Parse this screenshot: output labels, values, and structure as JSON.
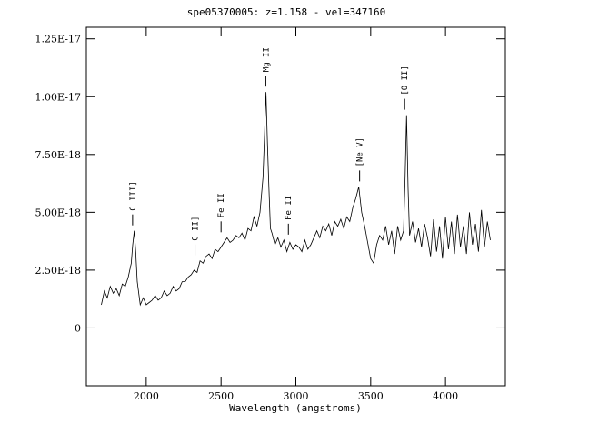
{
  "chart_data": {
    "type": "line",
    "title": "spe05370005: z=1.158 - vel=347160",
    "xlabel": "Wavelength (angstroms)",
    "ylabel": "",
    "xlim": [
      1600,
      4400
    ],
    "ylim": [
      -2.5e-18,
      1.3e-17
    ],
    "x_ticks": [
      2000,
      2500,
      3000,
      3500,
      4000
    ],
    "x_tick_labels": [
      "2000",
      "2500",
      "3000",
      "3500",
      "4000"
    ],
    "y_ticks": [
      0,
      2.5e-18,
      5e-18,
      7.5e-18,
      1e-17,
      1.25e-17
    ],
    "y_tick_labels": [
      "0",
      "2.50E-18",
      "5.00E-18",
      "7.50E-18",
      "1.00E-17",
      "1.25E-17"
    ],
    "grid": false,
    "series": [
      {
        "color": "#000000",
        "x": [
          1700,
          1720,
          1740,
          1760,
          1780,
          1800,
          1820,
          1840,
          1860,
          1880,
          1900,
          1910,
          1920,
          1930,
          1940,
          1960,
          1980,
          2000,
          2020,
          2040,
          2060,
          2080,
          2100,
          2120,
          2140,
          2160,
          2180,
          2200,
          2220,
          2240,
          2260,
          2280,
          2300,
          2320,
          2340,
          2360,
          2380,
          2400,
          2420,
          2440,
          2460,
          2480,
          2500,
          2520,
          2540,
          2560,
          2580,
          2600,
          2620,
          2640,
          2660,
          2680,
          2700,
          2720,
          2740,
          2760,
          2780,
          2790,
          2800,
          2810,
          2820,
          2830,
          2840,
          2860,
          2880,
          2900,
          2920,
          2940,
          2960,
          2980,
          3000,
          3020,
          3040,
          3060,
          3080,
          3100,
          3120,
          3140,
          3160,
          3180,
          3200,
          3220,
          3240,
          3260,
          3280,
          3300,
          3320,
          3340,
          3360,
          3380,
          3400,
          3420,
          3440,
          3460,
          3480,
          3500,
          3520,
          3540,
          3560,
          3580,
          3600,
          3620,
          3640,
          3660,
          3680,
          3700,
          3720,
          3730,
          3740,
          3750,
          3760,
          3780,
          3800,
          3820,
          3840,
          3860,
          3880,
          3900,
          3920,
          3940,
          3960,
          3980,
          4000,
          4020,
          4040,
          4060,
          4080,
          4100,
          4120,
          4140,
          4160,
          4180,
          4200,
          4220,
          4240,
          4260,
          4280,
          4300
        ],
        "y": [
          1e-18,
          1.6e-18,
          1.3e-18,
          1.8e-18,
          1.5e-18,
          1.7e-18,
          1.4e-18,
          1.9e-18,
          1.8e-18,
          2.2e-18,
          2.8e-18,
          3.6e-18,
          4.2e-18,
          3.3e-18,
          2e-18,
          1e-18,
          1.3e-18,
          1e-18,
          1.1e-18,
          1.2e-18,
          1.4e-18,
          1.2e-18,
          1.3e-18,
          1.6e-18,
          1.4e-18,
          1.5e-18,
          1.8e-18,
          1.6e-18,
          1.7e-18,
          2e-18,
          2e-18,
          2.2e-18,
          2.3e-18,
          2.5e-18,
          2.4e-18,
          2.9e-18,
          2.8e-18,
          3.1e-18,
          3.2e-18,
          3e-18,
          3.4e-18,
          3.3e-18,
          3.5e-18,
          3.7e-18,
          3.9e-18,
          3.7e-18,
          3.8e-18,
          4e-18,
          3.9e-18,
          4.1e-18,
          3.8e-18,
          4.3e-18,
          4.2e-18,
          4.8e-18,
          4.4e-18,
          5e-18,
          6.5e-18,
          8.2e-18,
          1.02e-17,
          8e-18,
          6e-18,
          4.3e-18,
          4.1e-18,
          3.6e-18,
          3.9e-18,
          3.5e-18,
          3.8e-18,
          3.3e-18,
          3.7e-18,
          3.4e-18,
          3.6e-18,
          3.5e-18,
          3.3e-18,
          3.8e-18,
          3.4e-18,
          3.6e-18,
          3.9e-18,
          4.2e-18,
          3.9e-18,
          4.4e-18,
          4.2e-18,
          4.5e-18,
          4e-18,
          4.6e-18,
          4.4e-18,
          4.7e-18,
          4.3e-18,
          4.8e-18,
          4.6e-18,
          5.2e-18,
          5.6e-18,
          6.1e-18,
          5e-18,
          4.4e-18,
          3.7e-18,
          3e-18,
          2.8e-18,
          3.6e-18,
          4e-18,
          3.8e-18,
          4.4e-18,
          3.6e-18,
          4.2e-18,
          3.2e-18,
          4.4e-18,
          3.8e-18,
          4.2e-18,
          6.5e-18,
          9.2e-18,
          6e-18,
          4e-18,
          4.6e-18,
          3.7e-18,
          4.3e-18,
          3.5e-18,
          4.5e-18,
          3.9e-18,
          3.1e-18,
          4.7e-18,
          3.3e-18,
          4.4e-18,
          3e-18,
          4.8e-18,
          3.4e-18,
          4.6e-18,
          3.2e-18,
          4.9e-18,
          3.5e-18,
          4.4e-18,
          3.2e-18,
          5e-18,
          3.6e-18,
          4.5e-18,
          3.3e-18,
          5.1e-18,
          3.5e-18,
          4.6e-18,
          3.8e-18
        ]
      }
    ],
    "line_labels": [
      {
        "text": "C III]",
        "x": 1909
      },
      {
        "text": "C II]",
        "x": 2326
      },
      {
        "text": "Fe II",
        "x": 2500
      },
      {
        "text": "Mg II",
        "x": 2799
      },
      {
        "text": "Fe II",
        "x": 2950
      },
      {
        "text": "[Ne V]",
        "x": 3426
      },
      {
        "text": "[O II]",
        "x": 3727
      }
    ]
  }
}
